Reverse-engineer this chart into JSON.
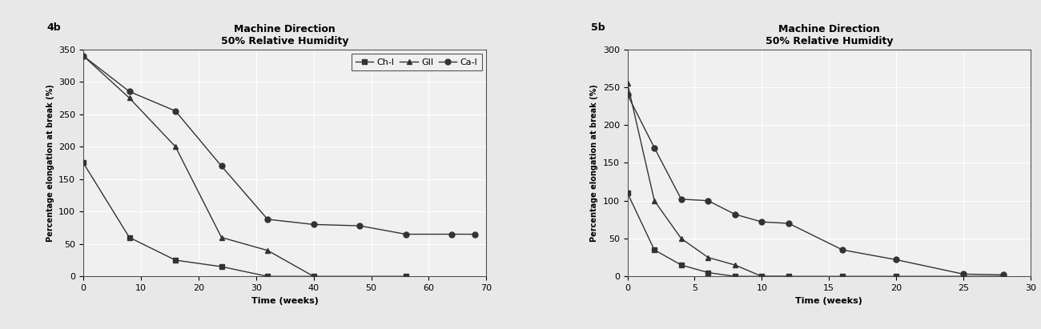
{
  "left": {
    "label": "4b",
    "title_line1": "Machine Direction",
    "title_line2": "50% Relative Humidity",
    "xlabel": "Time (weeks)",
    "ylabel": "Percentage elongation at break (%)",
    "xlim": [
      0,
      70
    ],
    "ylim": [
      0,
      350
    ],
    "xticks": [
      0,
      10,
      20,
      30,
      40,
      50,
      60,
      70
    ],
    "yticks": [
      0,
      50,
      100,
      150,
      200,
      250,
      300,
      350
    ],
    "series": {
      "Ch-l": {
        "x": [
          0,
          8,
          16,
          24,
          32,
          40,
          56
        ],
        "y": [
          175,
          60,
          25,
          15,
          0,
          0,
          0
        ],
        "marker": "s"
      },
      "GII": {
        "x": [
          0,
          8,
          16,
          24,
          32,
          40
        ],
        "y": [
          340,
          275,
          200,
          60,
          40,
          0
        ],
        "marker": "^"
      },
      "Ca-l": {
        "x": [
          0,
          8,
          16,
          24,
          32,
          40,
          48,
          56,
          64,
          68
        ],
        "y": [
          340,
          285,
          255,
          170,
          88,
          80,
          78,
          65,
          65,
          65
        ],
        "marker": "o"
      }
    },
    "has_legend": true
  },
  "right": {
    "label": "5b",
    "title_line1": "Machine Direction",
    "title_line2": "50% Relative Humidity",
    "xlabel": "Time (weeks)",
    "ylabel": "Percentage elongation at break (%)",
    "xlim": [
      0,
      30
    ],
    "ylim": [
      0,
      300
    ],
    "xticks": [
      0,
      5,
      10,
      15,
      20,
      25,
      30
    ],
    "yticks": [
      0,
      50,
      100,
      150,
      200,
      250,
      300
    ],
    "series": {
      "Ch-l": {
        "x": [
          0,
          2,
          4,
          6,
          8,
          10,
          12,
          16,
          20,
          25,
          28
        ],
        "y": [
          110,
          35,
          15,
          5,
          0,
          0,
          0,
          0,
          0,
          0,
          0
        ],
        "marker": "s"
      },
      "GII": {
        "x": [
          0,
          2,
          4,
          6,
          8,
          10,
          12
        ],
        "y": [
          255,
          100,
          50,
          25,
          15,
          0,
          0
        ],
        "marker": "^"
      },
      "Ca-l": {
        "x": [
          0,
          2,
          4,
          6,
          8,
          10,
          12,
          16,
          20,
          25,
          28
        ],
        "y": [
          240,
          170,
          102,
          100,
          82,
          72,
          70,
          35,
          22,
          3,
          2
        ],
        "marker": "o"
      }
    },
    "has_legend": false
  },
  "bg_color": "#e8e8e8",
  "plot_bg_color": "#f0f0f0",
  "grid_color": "#ffffff",
  "line_color": "#333333",
  "marker_size": 5,
  "line_width": 1.0,
  "title_fontsize": 9,
  "label_fontsize": 8,
  "tick_fontsize": 8,
  "legend_fontsize": 8
}
